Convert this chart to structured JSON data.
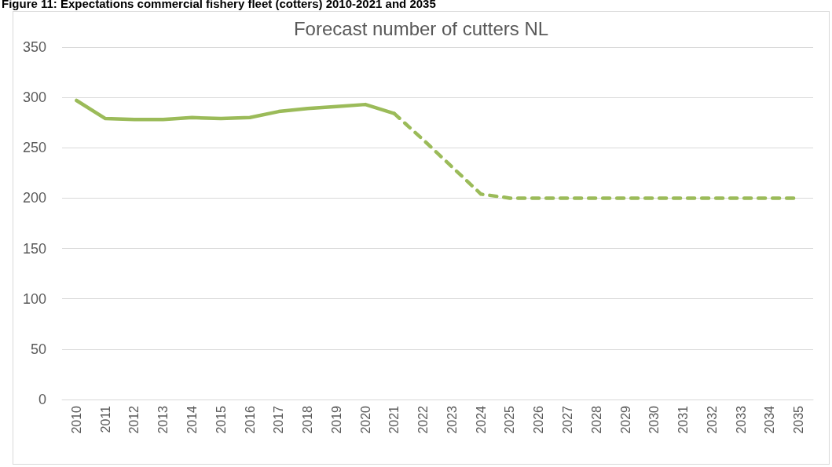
{
  "chart_data": {
    "type": "line",
    "title": "Forecast number of cutters NL",
    "annotations": [
      "Figure 11: Expectations commercial fishery fleet (cotters) 2010-2021 and 2035"
    ],
    "categories": [
      "2010",
      "2011",
      "2012",
      "2013",
      "2014",
      "2015",
      "2016",
      "2017",
      "2018",
      "2019",
      "2020",
      "2021",
      "2022",
      "2023",
      "2024",
      "2025",
      "2026",
      "2027",
      "2028",
      "2029",
      "2030",
      "2031",
      "2032",
      "2033",
      "2034",
      "2035"
    ],
    "series": [
      {
        "color": "#9bbb59",
        "line_style": "solid",
        "values": [
          297,
          279,
          278,
          278,
          280,
          279,
          280,
          286,
          289,
          291,
          293,
          284,
          null,
          null,
          null,
          null,
          null,
          null,
          null,
          null,
          null,
          null,
          null,
          null,
          null,
          null
        ]
      },
      {
        "color": "#9bbb59",
        "line_style": "dashed",
        "values": [
          null,
          null,
          null,
          null,
          null,
          null,
          null,
          null,
          null,
          null,
          null,
          284,
          258,
          231,
          204,
          200,
          200,
          200,
          200,
          200,
          200,
          200,
          200,
          200,
          200,
          200
        ]
      }
    ],
    "ylim": [
      0,
      350
    ],
    "yticks": [
      0,
      50,
      100,
      150,
      200,
      250,
      300,
      350
    ],
    "grid": "y",
    "marker": "none"
  }
}
